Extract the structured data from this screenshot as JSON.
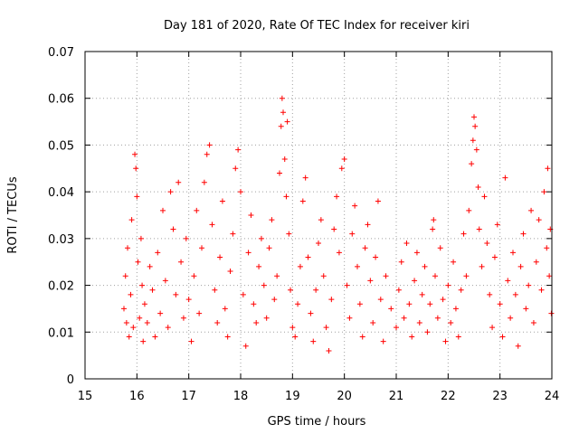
{
  "chart_data": {
    "type": "scatter",
    "title": "Day 181 of 2020, Rate Of TEC Index for receiver kiri",
    "xlabel": "GPS time / hours",
    "ylabel": "ROTI / TECUs",
    "xlim": [
      15,
      24
    ],
    "ylim": [
      0,
      0.07
    ],
    "xticks": [
      15,
      16,
      17,
      18,
      19,
      20,
      21,
      22,
      23,
      24
    ],
    "yticks": [
      0,
      0.01,
      0.02,
      0.03,
      0.04,
      0.05,
      0.06,
      0.07
    ],
    "xtick_labels": [
      "15",
      "16",
      "17",
      "18",
      "19",
      "20",
      "21",
      "22",
      "23",
      "24"
    ],
    "ytick_labels": [
      "0",
      "0.01",
      "0.02",
      "0.03",
      "0.04",
      "0.05",
      "0.06",
      "0.07"
    ],
    "grid": true,
    "marker": "plus",
    "series": [
      {
        "name": "ROTI",
        "color": "#ff0000",
        "points": [
          [
            15.75,
            0.015
          ],
          [
            15.78,
            0.022
          ],
          [
            15.8,
            0.012
          ],
          [
            15.82,
            0.028
          ],
          [
            15.85,
            0.009
          ],
          [
            15.88,
            0.018
          ],
          [
            15.9,
            0.034
          ],
          [
            15.93,
            0.011
          ],
          [
            15.96,
            0.048
          ],
          [
            15.98,
            0.045
          ],
          [
            16.0,
            0.039
          ],
          [
            16.02,
            0.025
          ],
          [
            16.05,
            0.013
          ],
          [
            16.08,
            0.03
          ],
          [
            16.1,
            0.02
          ],
          [
            16.12,
            0.008
          ],
          [
            16.15,
            0.016
          ],
          [
            16.2,
            0.012
          ],
          [
            16.25,
            0.024
          ],
          [
            16.3,
            0.019
          ],
          [
            16.35,
            0.009
          ],
          [
            16.4,
            0.027
          ],
          [
            16.45,
            0.014
          ],
          [
            16.5,
            0.036
          ],
          [
            16.55,
            0.021
          ],
          [
            16.6,
            0.011
          ],
          [
            16.65,
            0.04
          ],
          [
            16.7,
            0.032
          ],
          [
            16.75,
            0.018
          ],
          [
            16.8,
            0.042
          ],
          [
            16.85,
            0.025
          ],
          [
            16.9,
            0.013
          ],
          [
            16.95,
            0.03
          ],
          [
            17.0,
            0.017
          ],
          [
            17.05,
            0.008
          ],
          [
            17.1,
            0.022
          ],
          [
            17.15,
            0.036
          ],
          [
            17.2,
            0.014
          ],
          [
            17.25,
            0.028
          ],
          [
            17.3,
            0.042
          ],
          [
            17.35,
            0.048
          ],
          [
            17.4,
            0.05
          ],
          [
            17.45,
            0.033
          ],
          [
            17.5,
            0.019
          ],
          [
            17.55,
            0.012
          ],
          [
            17.6,
            0.026
          ],
          [
            17.65,
            0.038
          ],
          [
            17.7,
            0.015
          ],
          [
            17.75,
            0.009
          ],
          [
            17.8,
            0.023
          ],
          [
            17.85,
            0.031
          ],
          [
            17.9,
            0.045
          ],
          [
            17.95,
            0.049
          ],
          [
            18.0,
            0.04
          ],
          [
            18.05,
            0.018
          ],
          [
            18.1,
            0.007
          ],
          [
            18.15,
            0.027
          ],
          [
            18.2,
            0.035
          ],
          [
            18.25,
            0.016
          ],
          [
            18.3,
            0.012
          ],
          [
            18.35,
            0.024
          ],
          [
            18.4,
            0.03
          ],
          [
            18.45,
            0.02
          ],
          [
            18.5,
            0.013
          ],
          [
            18.55,
            0.028
          ],
          [
            18.6,
            0.034
          ],
          [
            18.65,
            0.017
          ],
          [
            18.7,
            0.022
          ],
          [
            18.75,
            0.044
          ],
          [
            18.78,
            0.054
          ],
          [
            18.8,
            0.06
          ],
          [
            18.82,
            0.057
          ],
          [
            18.85,
            0.047
          ],
          [
            18.88,
            0.039
          ],
          [
            18.9,
            0.055
          ],
          [
            18.93,
            0.031
          ],
          [
            18.96,
            0.019
          ],
          [
            19.0,
            0.011
          ],
          [
            19.05,
            0.009
          ],
          [
            19.1,
            0.016
          ],
          [
            19.15,
            0.024
          ],
          [
            19.2,
            0.038
          ],
          [
            19.25,
            0.043
          ],
          [
            19.3,
            0.026
          ],
          [
            19.35,
            0.014
          ],
          [
            19.4,
            0.008
          ],
          [
            19.45,
            0.019
          ],
          [
            19.5,
            0.029
          ],
          [
            19.55,
            0.034
          ],
          [
            19.6,
            0.022
          ],
          [
            19.65,
            0.011
          ],
          [
            19.7,
            0.006
          ],
          [
            19.75,
            0.017
          ],
          [
            19.8,
            0.032
          ],
          [
            19.85,
            0.039
          ],
          [
            19.9,
            0.027
          ],
          [
            19.95,
            0.045
          ],
          [
            20.0,
            0.047
          ],
          [
            20.05,
            0.02
          ],
          [
            20.1,
            0.013
          ],
          [
            20.15,
            0.031
          ],
          [
            20.2,
            0.037
          ],
          [
            20.25,
            0.024
          ],
          [
            20.3,
            0.016
          ],
          [
            20.35,
            0.009
          ],
          [
            20.4,
            0.028
          ],
          [
            20.45,
            0.033
          ],
          [
            20.5,
            0.021
          ],
          [
            20.55,
            0.012
          ],
          [
            20.6,
            0.026
          ],
          [
            20.65,
            0.038
          ],
          [
            20.7,
            0.017
          ],
          [
            20.75,
            0.008
          ],
          [
            20.8,
            0.022
          ],
          [
            20.9,
            0.015
          ],
          [
            21.0,
            0.011
          ],
          [
            21.05,
            0.019
          ],
          [
            21.1,
            0.025
          ],
          [
            21.15,
            0.013
          ],
          [
            21.2,
            0.029
          ],
          [
            21.25,
            0.016
          ],
          [
            21.3,
            0.009
          ],
          [
            21.35,
            0.021
          ],
          [
            21.4,
            0.027
          ],
          [
            21.45,
            0.012
          ],
          [
            21.5,
            0.018
          ],
          [
            21.55,
            0.024
          ],
          [
            21.6,
            0.01
          ],
          [
            21.65,
            0.016
          ],
          [
            21.7,
            0.032
          ],
          [
            21.72,
            0.034
          ],
          [
            21.75,
            0.022
          ],
          [
            21.8,
            0.013
          ],
          [
            21.85,
            0.028
          ],
          [
            21.9,
            0.017
          ],
          [
            21.95,
            0.008
          ],
          [
            22.0,
            0.02
          ],
          [
            22.05,
            0.012
          ],
          [
            22.1,
            0.025
          ],
          [
            22.15,
            0.015
          ],
          [
            22.2,
            0.009
          ],
          [
            22.25,
            0.019
          ],
          [
            22.3,
            0.031
          ],
          [
            22.35,
            0.022
          ],
          [
            22.4,
            0.036
          ],
          [
            22.45,
            0.046
          ],
          [
            22.48,
            0.051
          ],
          [
            22.5,
            0.056
          ],
          [
            22.52,
            0.054
          ],
          [
            22.55,
            0.049
          ],
          [
            22.58,
            0.041
          ],
          [
            22.6,
            0.032
          ],
          [
            22.65,
            0.024
          ],
          [
            22.7,
            0.039
          ],
          [
            22.75,
            0.029
          ],
          [
            22.8,
            0.018
          ],
          [
            22.85,
            0.011
          ],
          [
            22.9,
            0.026
          ],
          [
            22.95,
            0.033
          ],
          [
            23.0,
            0.016
          ],
          [
            23.05,
            0.009
          ],
          [
            23.1,
            0.043
          ],
          [
            23.15,
            0.021
          ],
          [
            23.2,
            0.013
          ],
          [
            23.25,
            0.027
          ],
          [
            23.3,
            0.018
          ],
          [
            23.35,
            0.007
          ],
          [
            23.4,
            0.024
          ],
          [
            23.45,
            0.031
          ],
          [
            23.5,
            0.015
          ],
          [
            23.55,
            0.02
          ],
          [
            23.6,
            0.036
          ],
          [
            23.65,
            0.012
          ],
          [
            23.7,
            0.025
          ],
          [
            23.75,
            0.034
          ],
          [
            23.8,
            0.019
          ],
          [
            23.85,
            0.04
          ],
          [
            23.9,
            0.028
          ],
          [
            23.92,
            0.045
          ],
          [
            23.95,
            0.022
          ],
          [
            23.97,
            0.032
          ],
          [
            23.99,
            0.014
          ]
        ]
      }
    ]
  }
}
